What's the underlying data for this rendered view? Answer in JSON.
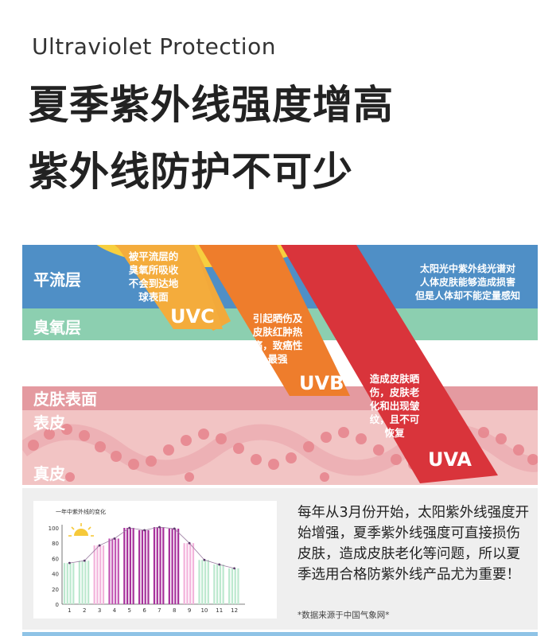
{
  "header": {
    "subtitle_en": "Ultraviolet Protection",
    "title_line1": "夏季紫外线强度增高",
    "title_line2": "紫外线防护不可少"
  },
  "diagram": {
    "layers": {
      "stratosphere": "平流层",
      "ozone": "臭氧层",
      "skin_surface": "皮肤表面",
      "epidermis": "表皮",
      "dermis": "真皮"
    },
    "uvc": {
      "name": "UVC",
      "note": [
        "被平流层的",
        "臭氧所吸收",
        "不会到达地",
        "球表面"
      ]
    },
    "uvb": {
      "name": "UVB",
      "note": [
        "引起晒伤及",
        "皮肤红肿热",
        "痛，致癌性",
        "最强"
      ]
    },
    "uva": {
      "name": "UVA",
      "note": [
        "造成皮肤晒",
        "伤，皮肤老",
        "化和出现皱",
        "纹，且不可",
        "恢复"
      ]
    },
    "sun_note": [
      "太阳光中紫外线光谱对",
      "人体皮肤能够造成损害",
      "但是人体却不能定量感知"
    ],
    "colors": {
      "stratosphere": "#4f8fc6",
      "ozone": "#8ccfb0",
      "skin": "#e7a9ab",
      "uvc": "#f2a93b",
      "uvb": "#ee7d2c",
      "uva": "#d9343b"
    }
  },
  "chart_data": {
    "type": "bar",
    "title": "一年中紫外线的变化",
    "categories": [
      "1",
      "2",
      "3",
      "4",
      "5",
      "6",
      "7",
      "8",
      "9",
      "10",
      "11",
      "12"
    ],
    "values": [
      54,
      57,
      77,
      86,
      100,
      97,
      101,
      99,
      80,
      58,
      52,
      47
    ],
    "ylim": [
      0,
      100
    ],
    "yticks": [
      "0",
      "20",
      "40",
      "60",
      "80",
      "100"
    ],
    "xlabel": "",
    "ylabel": "",
    "grid": false,
    "colors": [
      "#bde9cf",
      "#bde9cf",
      "#f3b4dc",
      "#c357b4",
      "#a8329c",
      "#a8329c",
      "#a8329c",
      "#a8329c",
      "#f3b4dc",
      "#bde9cf",
      "#bde9cf",
      "#bde9cf"
    ]
  },
  "text": {
    "description": "每年从3月份开始，太阳紫外线强度开始增强，夏季紫外线强度可直接损伤皮肤，造成皮肤老化等问题，所以夏季选用合格防紫外线产品尤为重要！",
    "source": "*数据来源于中国气象网*"
  }
}
